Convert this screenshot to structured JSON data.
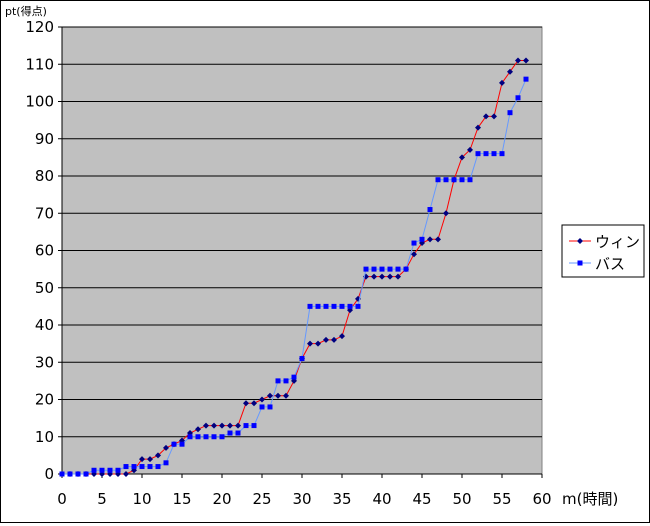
{
  "chart_data": {
    "type": "line",
    "ylabel": "pt(得点)",
    "xlabel": "m(時間)",
    "xlim": [
      0,
      60
    ],
    "ylim": [
      0,
      120
    ],
    "x_ticks": [
      "0",
      "5",
      "10",
      "15",
      "20",
      "25",
      "30",
      "35",
      "40",
      "45",
      "50",
      "55",
      "60"
    ],
    "y_ticks": [
      "0",
      "10",
      "20",
      "30",
      "40",
      "50",
      "60",
      "70",
      "80",
      "90",
      "100",
      "110",
      "120"
    ],
    "grid": "horizontal",
    "legend_position": "right",
    "background_color": "#c0c0c0",
    "series": [
      {
        "name": "ウィン",
        "line_color": "#ff0000",
        "marker_color": "#000080",
        "marker": "diamond",
        "points": [
          [
            0,
            0
          ],
          [
            1,
            0
          ],
          [
            2,
            0
          ],
          [
            3,
            0
          ],
          [
            4,
            0
          ],
          [
            5,
            0
          ],
          [
            6,
            0
          ],
          [
            7,
            0
          ],
          [
            8,
            0
          ],
          [
            9,
            1
          ],
          [
            10,
            4
          ],
          [
            11,
            4
          ],
          [
            12,
            5
          ],
          [
            13,
            7
          ],
          [
            14,
            8
          ],
          [
            15,
            9
          ],
          [
            16,
            11
          ],
          [
            17,
            12
          ],
          [
            18,
            13
          ],
          [
            19,
            13
          ],
          [
            20,
            13
          ],
          [
            21,
            13
          ],
          [
            22,
            13
          ],
          [
            23,
            19
          ],
          [
            24,
            19
          ],
          [
            25,
            20
          ],
          [
            26,
            21
          ],
          [
            27,
            21
          ],
          [
            28,
            21
          ],
          [
            29,
            25
          ],
          [
            30,
            31
          ],
          [
            31,
            35
          ],
          [
            32,
            35
          ],
          [
            33,
            36
          ],
          [
            34,
            36
          ],
          [
            35,
            37
          ],
          [
            36,
            44
          ],
          [
            37,
            47
          ],
          [
            38,
            53
          ],
          [
            39,
            53
          ],
          [
            40,
            53
          ],
          [
            41,
            53
          ],
          [
            42,
            53
          ],
          [
            43,
            55
          ],
          [
            44,
            59
          ],
          [
            45,
            62
          ],
          [
            46,
            63
          ],
          [
            47,
            63
          ],
          [
            48,
            70
          ],
          [
            49,
            79
          ],
          [
            50,
            85
          ],
          [
            51,
            87
          ],
          [
            52,
            93
          ],
          [
            53,
            96
          ],
          [
            54,
            96
          ],
          [
            55,
            105
          ],
          [
            56,
            108
          ],
          [
            57,
            111
          ],
          [
            58,
            111
          ]
        ]
      },
      {
        "name": "バス",
        "line_color": "#6699ff",
        "marker_color": "#0000ff",
        "marker": "square",
        "points": [
          [
            0,
            0
          ],
          [
            1,
            0
          ],
          [
            2,
            0
          ],
          [
            3,
            0
          ],
          [
            4,
            1
          ],
          [
            5,
            1
          ],
          [
            6,
            1
          ],
          [
            7,
            1
          ],
          [
            8,
            2
          ],
          [
            9,
            2
          ],
          [
            10,
            2
          ],
          [
            11,
            2
          ],
          [
            12,
            2
          ],
          [
            13,
            3
          ],
          [
            14,
            8
          ],
          [
            15,
            8
          ],
          [
            16,
            10
          ],
          [
            17,
            10
          ],
          [
            18,
            10
          ],
          [
            19,
            10
          ],
          [
            20,
            10
          ],
          [
            21,
            11
          ],
          [
            22,
            11
          ],
          [
            23,
            13
          ],
          [
            24,
            13
          ],
          [
            25,
            18
          ],
          [
            26,
            18
          ],
          [
            27,
            25
          ],
          [
            28,
            25
          ],
          [
            29,
            26
          ],
          [
            30,
            31
          ],
          [
            31,
            45
          ],
          [
            32,
            45
          ],
          [
            33,
            45
          ],
          [
            34,
            45
          ],
          [
            35,
            45
          ],
          [
            36,
            45
          ],
          [
            37,
            45
          ],
          [
            38,
            55
          ],
          [
            39,
            55
          ],
          [
            40,
            55
          ],
          [
            41,
            55
          ],
          [
            42,
            55
          ],
          [
            43,
            55
          ],
          [
            44,
            62
          ],
          [
            45,
            63
          ],
          [
            46,
            71
          ],
          [
            47,
            79
          ],
          [
            48,
            79
          ],
          [
            49,
            79
          ],
          [
            50,
            79
          ],
          [
            51,
            79
          ],
          [
            52,
            86
          ],
          [
            53,
            86
          ],
          [
            54,
            86
          ],
          [
            55,
            86
          ],
          [
            56,
            97
          ],
          [
            57,
            101
          ],
          [
            58,
            106
          ]
        ]
      }
    ]
  }
}
